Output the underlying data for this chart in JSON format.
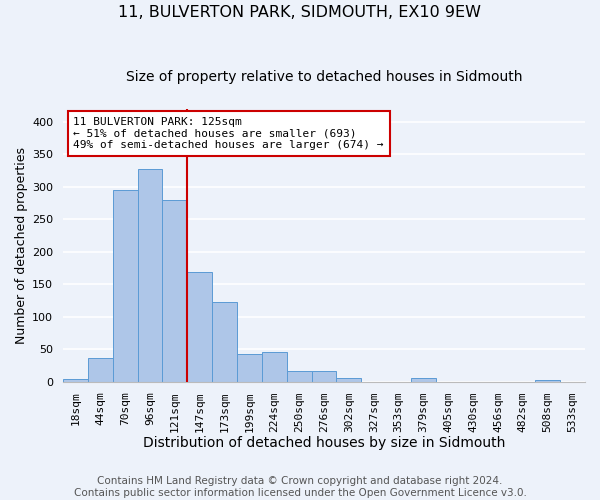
{
  "title": "11, BULVERTON PARK, SIDMOUTH, EX10 9EW",
  "subtitle": "Size of property relative to detached houses in Sidmouth",
  "xlabel": "Distribution of detached houses by size in Sidmouth",
  "ylabel": "Number of detached properties",
  "bar_labels": [
    "18sqm",
    "44sqm",
    "70sqm",
    "96sqm",
    "121sqm",
    "147sqm",
    "173sqm",
    "199sqm",
    "224sqm",
    "250sqm",
    "276sqm",
    "302sqm",
    "327sqm",
    "353sqm",
    "379sqm",
    "405sqm",
    "430sqm",
    "456sqm",
    "482sqm",
    "508sqm",
    "533sqm"
  ],
  "bar_values": [
    4,
    37,
    295,
    328,
    279,
    168,
    123,
    42,
    45,
    16,
    17,
    5,
    0,
    0,
    6,
    0,
    0,
    0,
    0,
    2,
    0
  ],
  "bar_color": "#aec6e8",
  "bar_edge_color": "#5b9bd5",
  "vline_x_idx": 4,
  "vline_color": "#cc0000",
  "annotation_box_text": "11 BULVERTON PARK: 125sqm\n← 51% of detached houses are smaller (693)\n49% of semi-detached houses are larger (674) →",
  "annotation_box_color": "#ffffff",
  "annotation_box_edge_color": "#cc0000",
  "ylim": [
    0,
    420
  ],
  "yticks": [
    0,
    50,
    100,
    150,
    200,
    250,
    300,
    350,
    400
  ],
  "footer_line1": "Contains HM Land Registry data © Crown copyright and database right 2024.",
  "footer_line2": "Contains public sector information licensed under the Open Government Licence v3.0.",
  "background_color": "#edf2fa",
  "plot_background_color": "#edf2fa",
  "grid_color": "#ffffff",
  "title_fontsize": 11.5,
  "subtitle_fontsize": 10,
  "xlabel_fontsize": 10,
  "ylabel_fontsize": 9,
  "tick_fontsize": 8,
  "annotation_fontsize": 8,
  "footer_fontsize": 7.5
}
